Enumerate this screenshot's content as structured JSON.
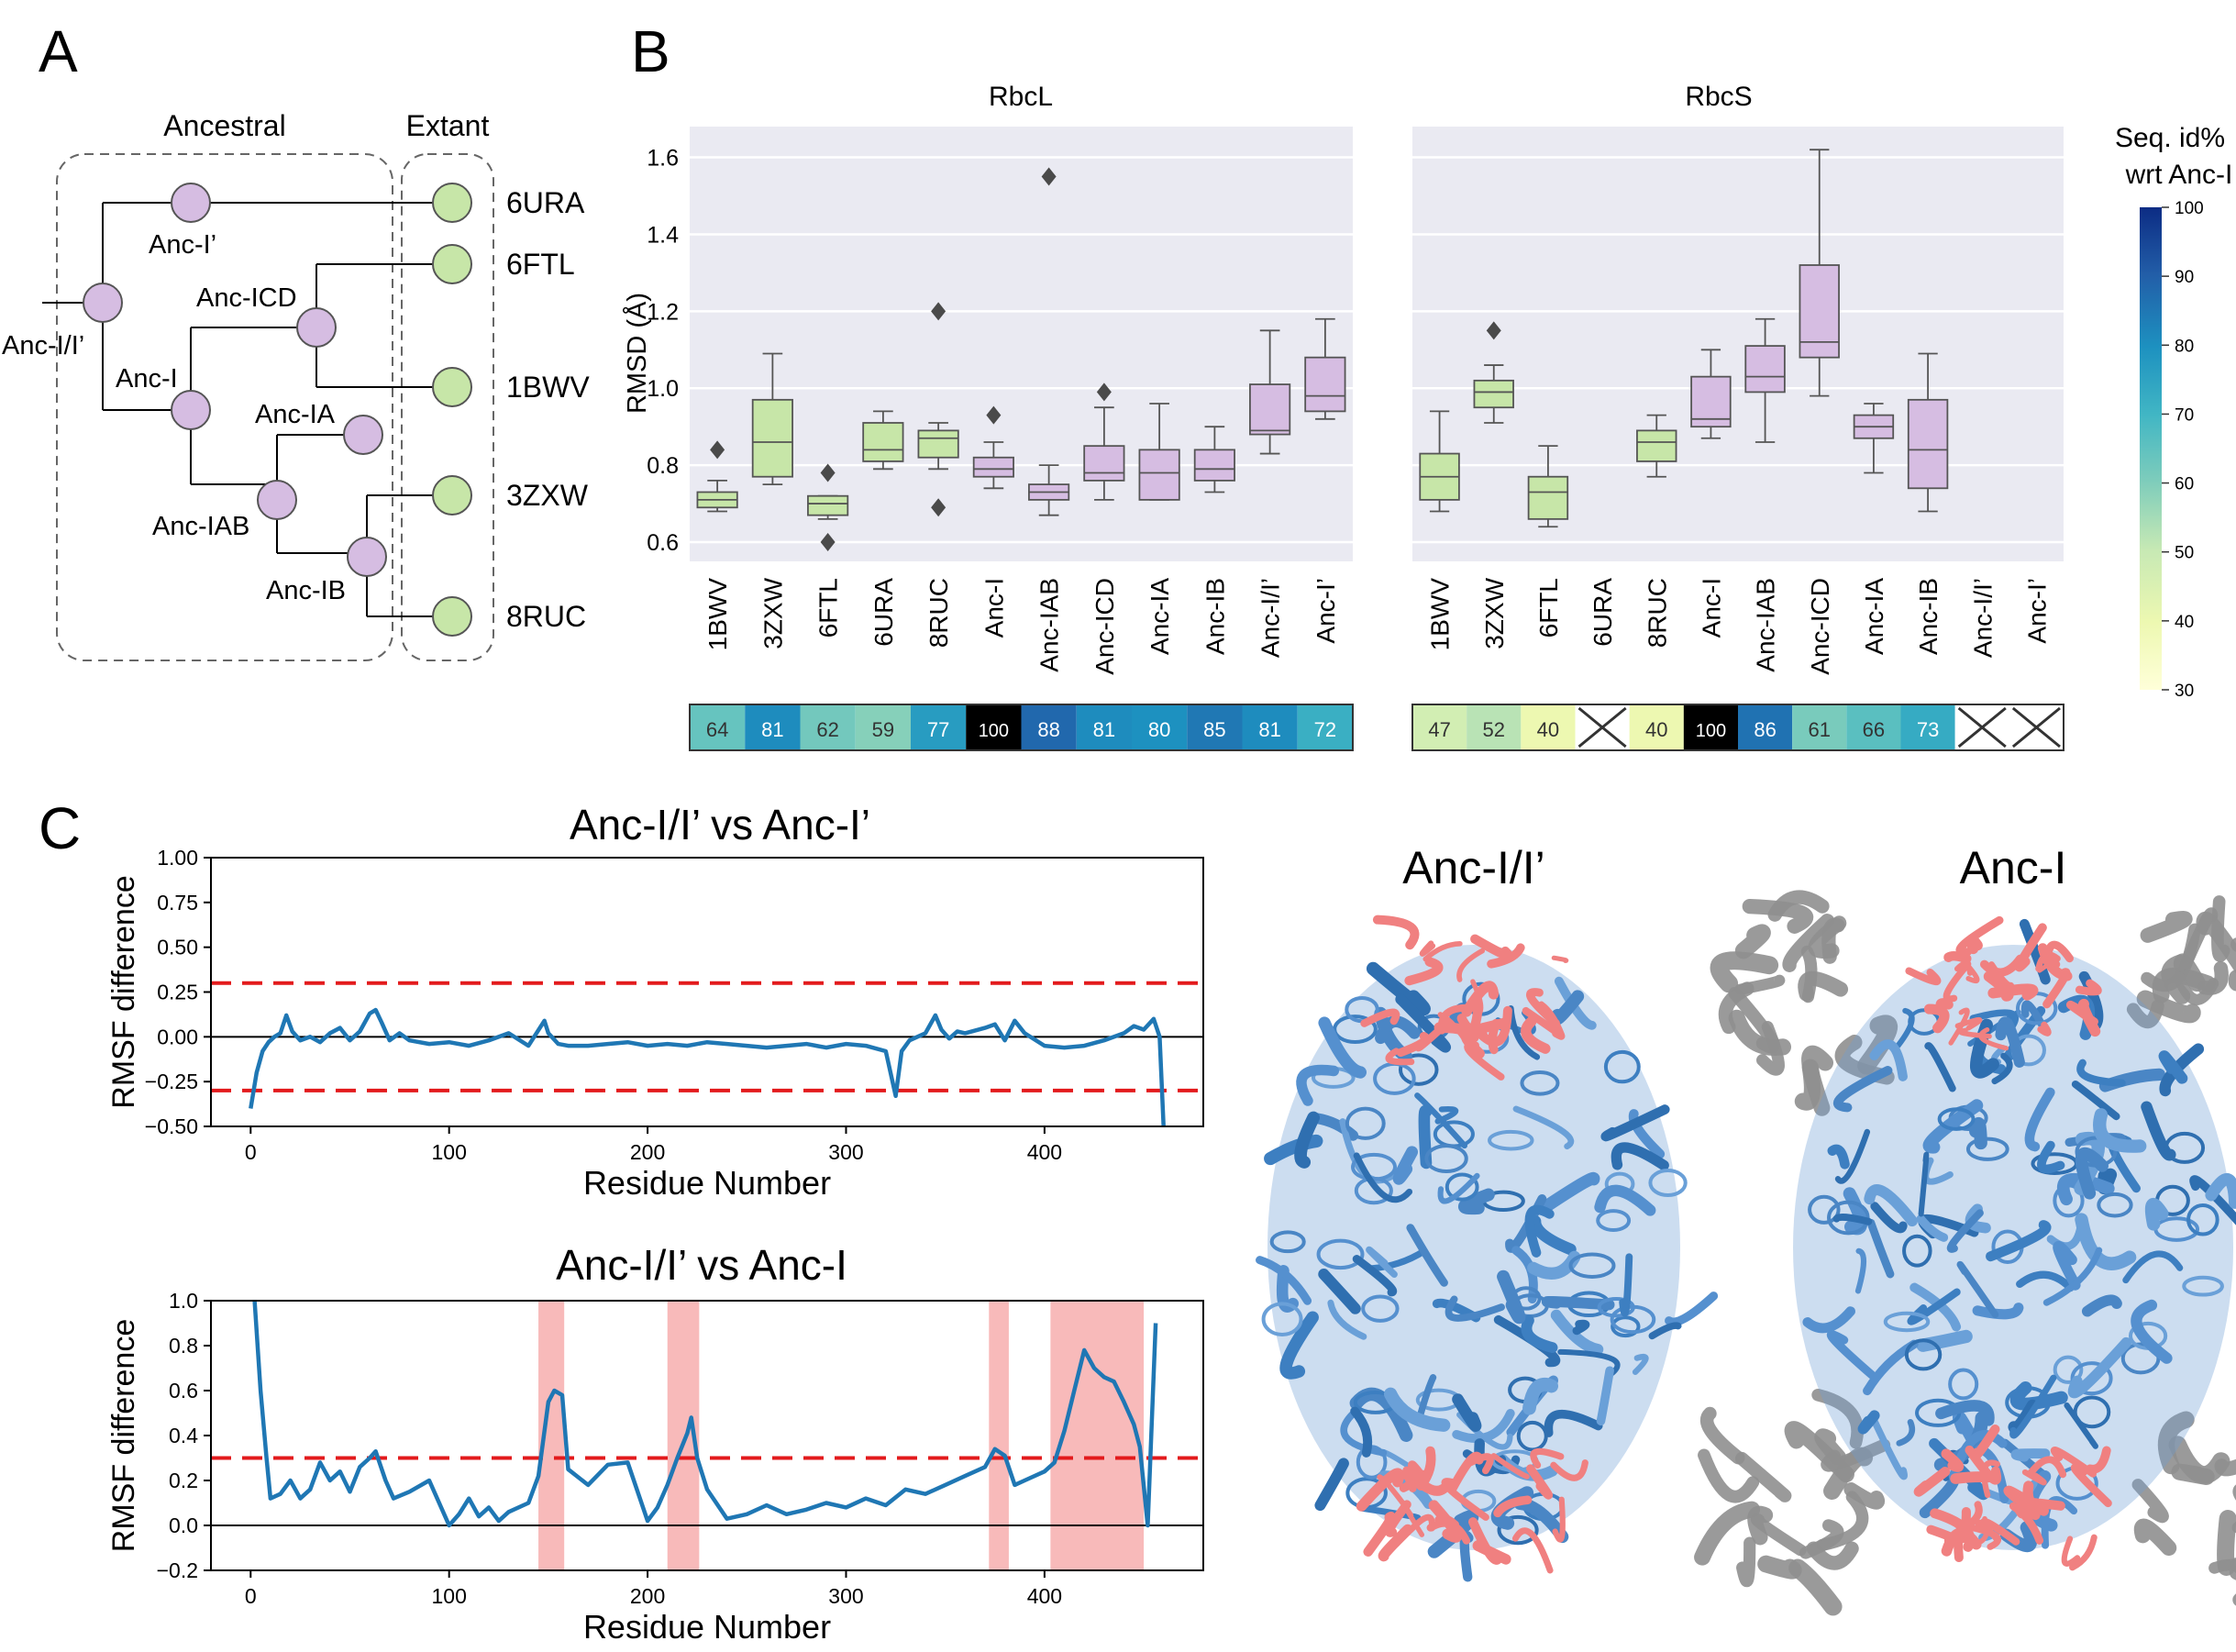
{
  "panels": {
    "a": "A",
    "b": "B",
    "c": "C"
  },
  "tree": {
    "ancestral_label": "Ancestral",
    "extant_label": "Extant",
    "ancestral_nodes": [
      "Anc-I/I’",
      "Anc-I’",
      "Anc-ICD",
      "Anc-I",
      "Anc-IA",
      "Anc-IAB",
      "Anc-IB"
    ],
    "extant_leaves": [
      "6URA",
      "6FTL",
      "1BWV",
      "3ZXW",
      "8RUC"
    ],
    "colors": {
      "ancestral": "#d6bde2",
      "extant": "#c7e6a8"
    }
  },
  "chart_data": [
    {
      "type": "box",
      "title": "RbcL",
      "ylabel": "RMSD (Å)",
      "ylim": [
        0.55,
        1.68
      ],
      "yticks": [
        "0.6",
        "0.8",
        "1.0",
        "1.2",
        "1.4",
        "1.6"
      ],
      "categories": [
        "1BWV",
        "3ZXW",
        "6FTL",
        "6URA",
        "8RUC",
        "Anc-I",
        "Anc-IAB",
        "Anc-ICD",
        "Anc-IA",
        "Anc-IB",
        "Anc-I/I’",
        "Anc-I’"
      ],
      "group": [
        "extant",
        "extant",
        "extant",
        "extant",
        "extant",
        "ancestral",
        "ancestral",
        "ancestral",
        "ancestral",
        "ancestral",
        "ancestral",
        "ancestral"
      ],
      "boxes": [
        {
          "min": 0.68,
          "q1": 0.69,
          "median": 0.71,
          "q3": 0.73,
          "max": 0.76,
          "outliers": [
            0.84
          ]
        },
        {
          "min": 0.75,
          "q1": 0.77,
          "median": 0.86,
          "q3": 0.97,
          "max": 1.09,
          "outliers": []
        },
        {
          "min": 0.66,
          "q1": 0.67,
          "median": 0.7,
          "q3": 0.72,
          "max": 0.72,
          "outliers": [
            0.78,
            0.6
          ]
        },
        {
          "min": 0.79,
          "q1": 0.81,
          "median": 0.84,
          "q3": 0.91,
          "max": 0.94,
          "outliers": []
        },
        {
          "min": 0.79,
          "q1": 0.82,
          "median": 0.87,
          "q3": 0.89,
          "max": 0.91,
          "outliers": [
            1.2,
            0.69
          ]
        },
        {
          "min": 0.74,
          "q1": 0.77,
          "median": 0.79,
          "q3": 0.82,
          "max": 0.86,
          "outliers": [
            0.93
          ]
        },
        {
          "min": 0.67,
          "q1": 0.71,
          "median": 0.73,
          "q3": 0.75,
          "max": 0.8,
          "outliers": [
            1.55
          ]
        },
        {
          "min": 0.71,
          "q1": 0.76,
          "median": 0.78,
          "q3": 0.85,
          "max": 0.95,
          "outliers": [
            0.99
          ]
        },
        {
          "min": 0.71,
          "q1": 0.71,
          "median": 0.78,
          "q3": 0.84,
          "max": 0.96,
          "outliers": []
        },
        {
          "min": 0.73,
          "q1": 0.76,
          "median": 0.79,
          "q3": 0.84,
          "max": 0.9,
          "outliers": []
        },
        {
          "min": 0.83,
          "q1": 0.88,
          "median": 0.89,
          "q3": 1.01,
          "max": 1.15,
          "outliers": []
        },
        {
          "min": 0.92,
          "q1": 0.94,
          "median": 0.98,
          "q3": 1.08,
          "max": 1.18,
          "outliers": []
        }
      ],
      "seq_identity": [
        "64",
        "81",
        "62",
        "59",
        "77",
        "100",
        "88",
        "81",
        "80",
        "85",
        "81",
        "72"
      ]
    },
    {
      "type": "box",
      "title": "RbcS",
      "ylim": [
        0.55,
        1.68
      ],
      "categories": [
        "1BWV",
        "3ZXW",
        "6FTL",
        "6URA",
        "8RUC",
        "Anc-I",
        "Anc-IAB",
        "Anc-ICD",
        "Anc-IA",
        "Anc-IB",
        "Anc-I/I’",
        "Anc-I’"
      ],
      "group": [
        "extant",
        "extant",
        "extant",
        "extant",
        "extant",
        "ancestral",
        "ancestral",
        "ancestral",
        "ancestral",
        "ancestral",
        "ancestral",
        "ancestral"
      ],
      "boxes": [
        {
          "min": 0.68,
          "q1": 0.71,
          "median": 0.77,
          "q3": 0.83,
          "max": 0.94,
          "outliers": []
        },
        {
          "min": 0.91,
          "q1": 0.95,
          "median": 0.99,
          "q3": 1.02,
          "max": 1.06,
          "outliers": [
            1.15
          ]
        },
        {
          "min": 0.64,
          "q1": 0.66,
          "median": 0.73,
          "q3": 0.77,
          "max": 0.85,
          "outliers": []
        },
        null,
        {
          "min": 0.77,
          "q1": 0.81,
          "median": 0.86,
          "q3": 0.89,
          "max": 0.93,
          "outliers": []
        },
        {
          "min": 0.87,
          "q1": 0.9,
          "median": 0.92,
          "q3": 1.03,
          "max": 1.1,
          "outliers": []
        },
        {
          "min": 0.86,
          "q1": 0.99,
          "median": 1.03,
          "q3": 1.11,
          "max": 1.18,
          "outliers": []
        },
        {
          "min": 0.98,
          "q1": 1.08,
          "median": 1.12,
          "q3": 1.32,
          "max": 1.62,
          "outliers": []
        },
        {
          "min": 0.78,
          "q1": 0.87,
          "median": 0.9,
          "q3": 0.93,
          "max": 0.96,
          "outliers": []
        },
        {
          "min": 0.68,
          "q1": 0.74,
          "median": 0.84,
          "q3": 0.97,
          "max": 1.09,
          "outliers": []
        },
        null,
        null
      ],
      "seq_identity": [
        "47",
        "52",
        "40",
        "",
        "40",
        "100",
        "86",
        "61",
        "66",
        "73",
        "",
        ""
      ],
      "missing": [
        false,
        false,
        false,
        true,
        false,
        false,
        false,
        false,
        false,
        false,
        true,
        true
      ]
    },
    {
      "type": "line",
      "title": "Anc-I/I’ vs Anc-I’",
      "xlabel": "Residue Number",
      "ylabel": "RMSF difference",
      "xlim": [
        -20,
        480
      ],
      "ylim": [
        -0.5,
        1.0
      ],
      "xticks": [
        "0",
        "100",
        "200",
        "300",
        "400"
      ],
      "yticks": [
        "−0.50",
        "−0.25",
        "0.00",
        "0.25",
        "0.50",
        "0.75",
        "1.00"
      ],
      "threshold": [
        0.3,
        -0.3
      ],
      "x": [
        0,
        3,
        6,
        9,
        12,
        15,
        18,
        21,
        25,
        30,
        35,
        40,
        45,
        50,
        55,
        60,
        63,
        66,
        70,
        75,
        80,
        90,
        100,
        110,
        120,
        130,
        140,
        148,
        150,
        155,
        160,
        170,
        180,
        190,
        200,
        210,
        220,
        230,
        240,
        250,
        260,
        270,
        280,
        290,
        300,
        310,
        320,
        325,
        328,
        332,
        340,
        345,
        348,
        352,
        356,
        360,
        370,
        375,
        380,
        385,
        390,
        400,
        410,
        420,
        430,
        440,
        445,
        450,
        455,
        458,
        460
      ],
      "values": [
        -0.4,
        -0.2,
        -0.08,
        -0.03,
        0.0,
        0.02,
        0.12,
        0.03,
        -0.02,
        0.0,
        -0.03,
        0.02,
        0.05,
        -0.02,
        0.03,
        0.13,
        0.15,
        0.08,
        -0.02,
        0.02,
        -0.02,
        -0.04,
        -0.03,
        -0.05,
        -0.02,
        0.02,
        -0.05,
        0.09,
        0.02,
        -0.04,
        -0.05,
        -0.05,
        -0.04,
        -0.03,
        -0.05,
        -0.04,
        -0.05,
        -0.03,
        -0.04,
        -0.05,
        -0.06,
        -0.05,
        -0.04,
        -0.06,
        -0.04,
        -0.05,
        -0.08,
        -0.33,
        -0.08,
        -0.02,
        0.02,
        0.12,
        0.04,
        -0.01,
        0.03,
        0.02,
        0.05,
        0.07,
        -0.02,
        0.09,
        0.02,
        -0.05,
        -0.06,
        -0.05,
        -0.02,
        0.02,
        0.06,
        0.04,
        0.1,
        0.0,
        -0.55
      ]
    },
    {
      "type": "line",
      "title": "Anc-I/I’ vs Anc-I",
      "xlabel": "Residue Number",
      "ylabel": "RMSF difference",
      "xlim": [
        -20,
        480
      ],
      "ylim": [
        -0.2,
        1.0
      ],
      "xticks": [
        "0",
        "100",
        "200",
        "300",
        "400"
      ],
      "yticks": [
        "−0.2",
        "0.0",
        "0.2",
        "0.4",
        "0.6",
        "0.8",
        "1.0"
      ],
      "threshold": [
        0.3
      ],
      "highlight_ranges": [
        [
          145,
          158
        ],
        [
          210,
          226
        ],
        [
          372,
          382
        ],
        [
          403,
          450
        ]
      ],
      "x": [
        2,
        5,
        8,
        10,
        15,
        20,
        25,
        30,
        35,
        40,
        45,
        50,
        55,
        60,
        63,
        68,
        72,
        80,
        90,
        100,
        105,
        110,
        115,
        120,
        125,
        130,
        140,
        145,
        150,
        153,
        157,
        160,
        170,
        180,
        190,
        200,
        205,
        210,
        215,
        220,
        222,
        225,
        230,
        240,
        250,
        260,
        270,
        280,
        290,
        300,
        310,
        320,
        330,
        340,
        350,
        360,
        370,
        375,
        380,
        385,
        390,
        400,
        405,
        410,
        415,
        420,
        425,
        430,
        435,
        440,
        445,
        448,
        452,
        456
      ],
      "values": [
        1.0,
        0.6,
        0.3,
        0.12,
        0.14,
        0.2,
        0.12,
        0.16,
        0.28,
        0.2,
        0.24,
        0.15,
        0.26,
        0.3,
        0.33,
        0.2,
        0.12,
        0.15,
        0.2,
        0.0,
        0.05,
        0.12,
        0.04,
        0.08,
        0.02,
        0.06,
        0.1,
        0.22,
        0.55,
        0.6,
        0.58,
        0.25,
        0.18,
        0.27,
        0.28,
        0.02,
        0.08,
        0.18,
        0.3,
        0.41,
        0.48,
        0.3,
        0.16,
        0.03,
        0.05,
        0.09,
        0.05,
        0.07,
        0.1,
        0.08,
        0.12,
        0.09,
        0.16,
        0.14,
        0.18,
        0.22,
        0.26,
        0.34,
        0.31,
        0.18,
        0.2,
        0.24,
        0.28,
        0.42,
        0.6,
        0.78,
        0.7,
        0.66,
        0.64,
        0.55,
        0.45,
        0.35,
        0.0,
        0.9
      ]
    }
  ],
  "colorbar": {
    "title": [
      "Seq. id%",
      "wrt Anc-I"
    ],
    "ticks": [
      "30",
      "40",
      "50",
      "60",
      "70",
      "80",
      "90",
      "100"
    ],
    "range": [
      30,
      100
    ]
  },
  "structures": [
    {
      "title": "Anc-I/I’"
    },
    {
      "title": "Anc-I"
    }
  ],
  "colors": {
    "extant_box": "#c7e6a8",
    "ancestral_box": "#d6bde2",
    "plot_bg": "#eaeaf2",
    "line": "#1f77b4",
    "threshold": "#e31a1c",
    "highlight": "#f5a3a3",
    "struct_blue": "#4a86c5",
    "struct_red": "#f08080",
    "struct_gray": "#8f8f8f"
  }
}
